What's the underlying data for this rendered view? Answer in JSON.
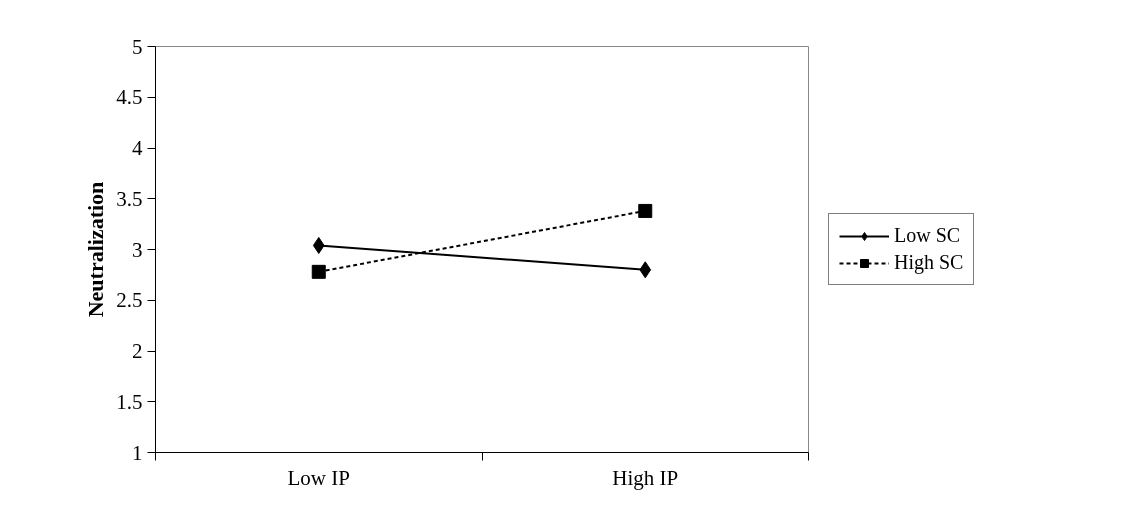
{
  "chart_data": {
    "type": "line",
    "ylabel": "Neutralization",
    "categories": [
      "Low IP",
      "High IP"
    ],
    "series": [
      {
        "name": "Low SC",
        "color": "#000000",
        "values": [
          3.04,
          2.8
        ],
        "marker": "diamond",
        "line_style": "solid"
      },
      {
        "name": "High SC",
        "color": "#000000",
        "values": [
          2.78,
          3.38
        ],
        "marker": "square",
        "line_style": "dashed"
      }
    ],
    "ylim": [
      1,
      5
    ],
    "yticks": [
      1,
      1.5,
      2,
      2.5,
      3,
      3.5,
      4,
      4.5,
      5
    ],
    "grid": false,
    "legend": "right"
  }
}
